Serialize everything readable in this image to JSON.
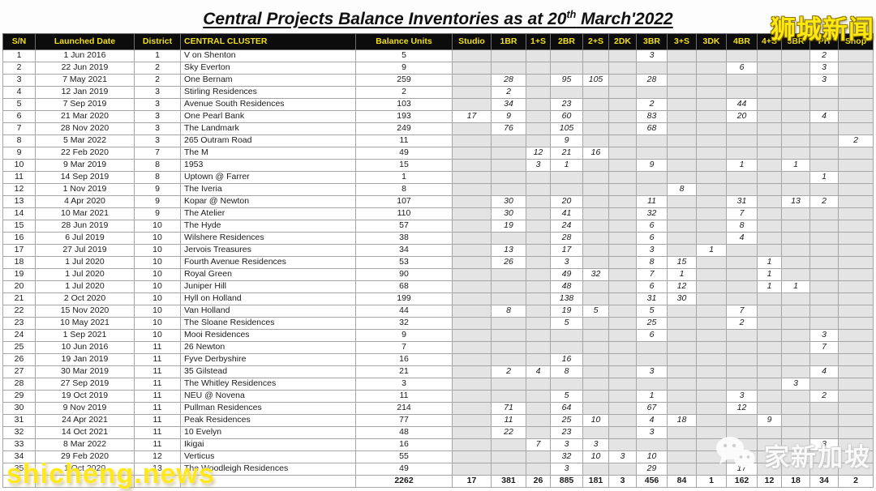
{
  "title": {
    "pre": "Central Projects Balance Inventories as at 20",
    "sup": "th",
    "post": " March'2022"
  },
  "watermarks": {
    "top_right": "狮城新闻",
    "bottom_left": "shicheng.news",
    "bottom_right": "家新加坡",
    "wechat_icon": "wechat-icon"
  },
  "colors": {
    "header_bg": "#0c0c0c",
    "header_text": "#f2df1d",
    "watermark_yellow": "#ffe812",
    "empty_cell": "#e4e4e4"
  },
  "table": {
    "headers": [
      "S/N",
      "Launched Date",
      "District",
      "CENTRAL CLUSTER",
      "Balance Units",
      "Studio",
      "1BR",
      "1+S",
      "2BR",
      "2+S",
      "2DK",
      "3BR",
      "3+S",
      "3DK",
      "4BR",
      "4+S",
      "5BR",
      "PH",
      "Shop"
    ],
    "rows": [
      [
        "1",
        "1 Jun 2016",
        "1",
        "V on Shenton",
        "5",
        "",
        "",
        "",
        "",
        "",
        "",
        "3",
        "",
        "",
        "",
        "",
        "",
        "2",
        ""
      ],
      [
        "2",
        "22 Jun 2019",
        "2",
        "Sky Everton",
        "9",
        "",
        "",
        "",
        "",
        "",
        "",
        "",
        "",
        "",
        "6",
        "",
        "",
        "3",
        ""
      ],
      [
        "3",
        "7 May 2021",
        "2",
        "One Bernam",
        "259",
        "",
        "28",
        "",
        "95",
        "105",
        "",
        "28",
        "",
        "",
        "",
        "",
        "",
        "3",
        ""
      ],
      [
        "4",
        "12 Jan 2019",
        "3",
        "Stirling Residences",
        "2",
        "",
        "2",
        "",
        "",
        "",
        "",
        "",
        "",
        "",
        "",
        "",
        "",
        "",
        ""
      ],
      [
        "5",
        "7 Sep 2019",
        "3",
        "Avenue South Residences",
        "103",
        "",
        "34",
        "",
        "23",
        "",
        "",
        "2",
        "",
        "",
        "44",
        "",
        "",
        "",
        ""
      ],
      [
        "6",
        "21 Mar 2020",
        "3",
        "One Pearl Bank",
        "193",
        "17",
        "9",
        "",
        "60",
        "",
        "",
        "83",
        "",
        "",
        "20",
        "",
        "",
        "4",
        ""
      ],
      [
        "7",
        "28 Nov 2020",
        "3",
        "The Landmark",
        "249",
        "",
        "76",
        "",
        "105",
        "",
        "",
        "68",
        "",
        "",
        "",
        "",
        "",
        "",
        ""
      ],
      [
        "8",
        "5 Mar 2022",
        "3",
        "265 Outram Road",
        "11",
        "",
        "",
        "",
        "9",
        "",
        "",
        "",
        "",
        "",
        "",
        "",
        "",
        "",
        "2"
      ],
      [
        "9",
        "22 Feb 2020",
        "7",
        "The M",
        "49",
        "",
        "",
        "12",
        "21",
        "16",
        "",
        "",
        "",
        "",
        "",
        "",
        "",
        "",
        ""
      ],
      [
        "10",
        "9 Mar 2019",
        "8",
        "1953",
        "15",
        "",
        "",
        "3",
        "1",
        "",
        "",
        "9",
        "",
        "",
        "1",
        "",
        "1",
        "",
        ""
      ],
      [
        "11",
        "14 Sep 2019",
        "8",
        "Uptown @ Farrer",
        "1",
        "",
        "",
        "",
        "",
        "",
        "",
        "",
        "",
        "",
        "",
        "",
        "",
        "1",
        ""
      ],
      [
        "12",
        "1 Nov 2019",
        "9",
        "The Iveria",
        "8",
        "",
        "",
        "",
        "",
        "",
        "",
        "",
        "8",
        "",
        "",
        "",
        "",
        "",
        ""
      ],
      [
        "13",
        "4 Apr 2020",
        "9",
        "Kopar @ Newton",
        "107",
        "",
        "30",
        "",
        "20",
        "",
        "",
        "11",
        "",
        "",
        "31",
        "",
        "13",
        "2",
        ""
      ],
      [
        "14",
        "10 Mar 2021",
        "9",
        "The Atelier",
        "110",
        "",
        "30",
        "",
        "41",
        "",
        "",
        "32",
        "",
        "",
        "7",
        "",
        "",
        "",
        ""
      ],
      [
        "15",
        "28 Jun 2019",
        "10",
        "The Hyde",
        "57",
        "",
        "19",
        "",
        "24",
        "",
        "",
        "6",
        "",
        "",
        "8",
        "",
        "",
        "",
        ""
      ],
      [
        "16",
        "6 Jul 2019",
        "10",
        "Wilshere Residences",
        "38",
        "",
        "",
        "",
        "28",
        "",
        "",
        "6",
        "",
        "",
        "4",
        "",
        "",
        "",
        ""
      ],
      [
        "17",
        "27 Jul 2019",
        "10",
        "Jervois Treasures",
        "34",
        "",
        "13",
        "",
        "17",
        "",
        "",
        "3",
        "",
        "1",
        "",
        "",
        "",
        "",
        ""
      ],
      [
        "18",
        "1 Jul 2020",
        "10",
        "Fourth Avenue Residences",
        "53",
        "",
        "26",
        "",
        "3",
        "",
        "",
        "8",
        "15",
        "",
        "",
        "1",
        "",
        "",
        ""
      ],
      [
        "19",
        "1 Jul 2020",
        "10",
        "Royal Green",
        "90",
        "",
        "",
        "",
        "49",
        "32",
        "",
        "7",
        "1",
        "",
        "",
        "1",
        "",
        "",
        ""
      ],
      [
        "20",
        "1 Jul 2020",
        "10",
        "Juniper Hill",
        "68",
        "",
        "",
        "",
        "48",
        "",
        "",
        "6",
        "12",
        "",
        "",
        "1",
        "1",
        "",
        ""
      ],
      [
        "21",
        "2 Oct 2020",
        "10",
        "Hyll on Holland",
        "199",
        "",
        "",
        "",
        "138",
        "",
        "",
        "31",
        "30",
        "",
        "",
        "",
        "",
        "",
        ""
      ],
      [
        "22",
        "15 Nov 2020",
        "10",
        "Van Holland",
        "44",
        "",
        "8",
        "",
        "19",
        "5",
        "",
        "5",
        "",
        "",
        "7",
        "",
        "",
        "",
        ""
      ],
      [
        "23",
        "10 May 2021",
        "10",
        "The Sloane Residences",
        "32",
        "",
        "",
        "",
        "5",
        "",
        "",
        "25",
        "",
        "",
        "2",
        "",
        "",
        "",
        ""
      ],
      [
        "24",
        "1 Sep 2021",
        "10",
        "Mooi Residences",
        "9",
        "",
        "",
        "",
        "",
        "",
        "",
        "6",
        "",
        "",
        "",
        "",
        "",
        "3",
        ""
      ],
      [
        "25",
        "10 Jun 2016",
        "11",
        "26 Newton",
        "7",
        "",
        "",
        "",
        "",
        "",
        "",
        "",
        "",
        "",
        "",
        "",
        "",
        "7",
        ""
      ],
      [
        "26",
        "19 Jan 2019",
        "11",
        "Fyve Derbyshire",
        "16",
        "",
        "",
        "",
        "16",
        "",
        "",
        "",
        "",
        "",
        "",
        "",
        "",
        "",
        ""
      ],
      [
        "27",
        "30 Mar 2019",
        "11",
        "35 Gilstead",
        "21",
        "",
        "2",
        "4",
        "8",
        "",
        "",
        "3",
        "",
        "",
        "",
        "",
        "",
        "4",
        ""
      ],
      [
        "28",
        "27 Sep 2019",
        "11",
        "The Whitley Residences",
        "3",
        "",
        "",
        "",
        "",
        "",
        "",
        "",
        "",
        "",
        "",
        "",
        "3",
        "",
        ""
      ],
      [
        "29",
        "19 Oct 2019",
        "11",
        "NEU @ Novena",
        "11",
        "",
        "",
        "",
        "5",
        "",
        "",
        "1",
        "",
        "",
        "3",
        "",
        "",
        "2",
        ""
      ],
      [
        "30",
        "9 Nov 2019",
        "11",
        "Pullman Residences",
        "214",
        "",
        "71",
        "",
        "64",
        "",
        "",
        "67",
        "",
        "",
        "12",
        "",
        "",
        "",
        ""
      ],
      [
        "31",
        "24 Apr 2021",
        "11",
        "Peak Residences",
        "77",
        "",
        "11",
        "",
        "25",
        "10",
        "",
        "4",
        "18",
        "",
        "",
        "9",
        "",
        "",
        ""
      ],
      [
        "32",
        "14 Oct 2021",
        "11",
        "10 Evelyn",
        "48",
        "",
        "22",
        "",
        "23",
        "",
        "",
        "3",
        "",
        "",
        "",
        "",
        "",
        "",
        ""
      ],
      [
        "33",
        "8 Mar 2022",
        "11",
        "Ikigai",
        "16",
        "",
        "",
        "7",
        "3",
        "3",
        "",
        "",
        "",
        "",
        "",
        "",
        "",
        "3",
        ""
      ],
      [
        "34",
        "29 Feb 2020",
        "12",
        "Verticus",
        "55",
        "",
        "",
        "",
        "32",
        "10",
        "3",
        "10",
        "",
        "",
        "",
        "",
        "",
        "",
        ""
      ],
      [
        "35",
        "1 Oct 2020",
        "13",
        "The Woodleigh Residences",
        "49",
        "",
        "",
        "",
        "3",
        "",
        "",
        "29",
        "",
        "",
        "17",
        "",
        "",
        "",
        ""
      ]
    ],
    "totals": [
      "",
      "",
      "",
      "",
      "2262",
      "17",
      "381",
      "26",
      "885",
      "181",
      "3",
      "456",
      "84",
      "1",
      "162",
      "12",
      "18",
      "34",
      "2"
    ]
  }
}
